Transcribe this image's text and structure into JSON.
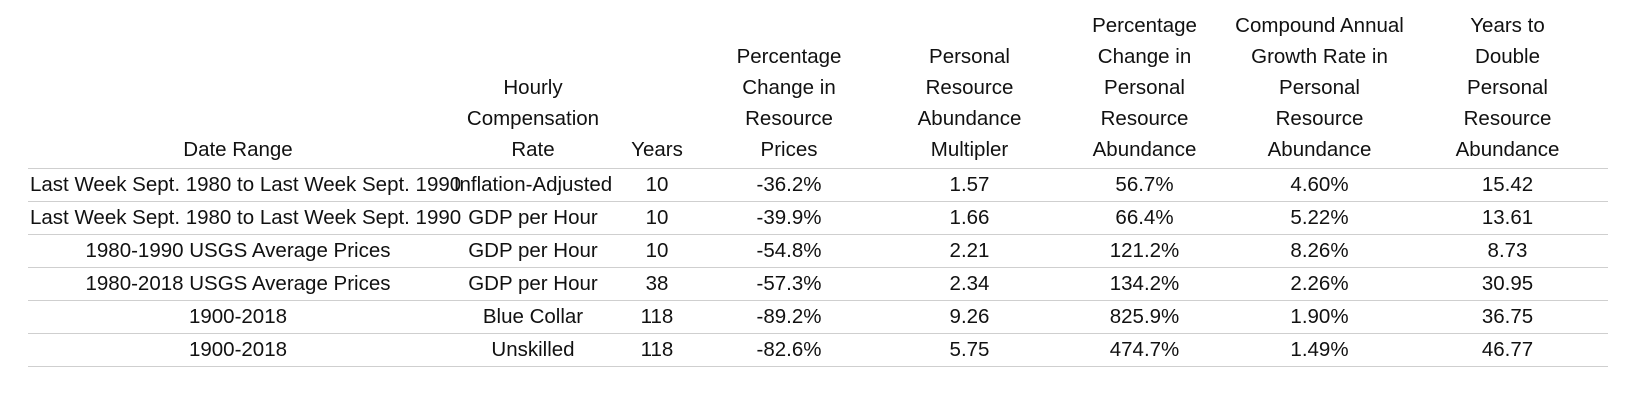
{
  "table": {
    "headers": [
      "Date Range",
      "Hourly\nCompensation\nRate",
      "Years",
      "Percentage\nChange in\nResource\nPrices",
      "Personal\nResource\nAbundance\nMultipler",
      "Percentage\nChange in\nPersonal\nResource\nAbundance",
      "Compound Annual\nGrowth Rate in\nPersonal\nResource\nAbundance",
      "Years to\nDouble\nPersonal\nResource\nAbundance"
    ],
    "rows": [
      [
        "Last Week Sept. 1980 to Last Week Sept. 1990",
        "Inflation-Adjusted",
        "10",
        "-36.2%",
        "1.57",
        "56.7%",
        "4.60%",
        "15.42"
      ],
      [
        "Last Week Sept. 1980 to Last Week Sept. 1990",
        "GDP per Hour",
        "10",
        "-39.9%",
        "1.66",
        "66.4%",
        "5.22%",
        "13.61"
      ],
      [
        "1980-1990 USGS Average Prices",
        "GDP per Hour",
        "10",
        "-54.8%",
        "2.21",
        "121.2%",
        "8.26%",
        "8.73"
      ],
      [
        "1980-2018 USGS Average Prices",
        "GDP per Hour",
        "38",
        "-57.3%",
        "2.34",
        "134.2%",
        "2.26%",
        "30.95"
      ],
      [
        "1900-2018",
        "Blue Collar",
        "118",
        "-89.2%",
        "9.26",
        "825.9%",
        "1.90%",
        "36.75"
      ],
      [
        "1900-2018",
        "Unskilled",
        "118",
        "-82.6%",
        "5.75",
        "474.7%",
        "1.49%",
        "46.77"
      ]
    ]
  }
}
